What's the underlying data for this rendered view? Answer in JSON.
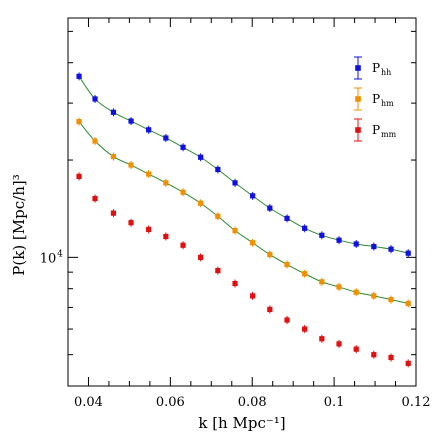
{
  "chart_data": {
    "type": "scatter",
    "xlabel": "k [h Mpc⁻¹]",
    "ylabel": "P(k) [Mpc/h]³",
    "xlim": [
      0.035,
      0.12
    ],
    "ylim": [
      4000,
      55000
    ],
    "yscale": "log",
    "grid": false,
    "legend_position": "top-right",
    "xticks": [
      {
        "value": 0.04,
        "label": "0.04"
      },
      {
        "value": 0.06,
        "label": "0.06"
      },
      {
        "value": 0.08,
        "label": "0.08"
      },
      {
        "value": 0.1,
        "label": "0.1"
      },
      {
        "value": 0.12,
        "label": "0.12"
      }
    ],
    "yticks_major": [
      {
        "value": 10000,
        "label": "10",
        "exponent": "4"
      }
    ],
    "yticks_minor": [
      5000,
      6000,
      7000,
      8000,
      9000,
      20000,
      30000,
      40000,
      50000
    ],
    "x": [
      0.0377,
      0.0416,
      0.0461,
      0.0504,
      0.0547,
      0.0589,
      0.0631,
      0.0674,
      0.0716,
      0.0758,
      0.0801,
      0.0843,
      0.0885,
      0.0928,
      0.097,
      0.1012,
      0.1054,
      0.1097,
      0.1139,
      0.1181
    ],
    "series": [
      {
        "name": "P",
        "subscript": "hh",
        "color": "#1010e0",
        "fit_line": true,
        "values": [
          36300,
          30900,
          28100,
          26400,
          24800,
          23400,
          21900,
          20400,
          18700,
          17000,
          15500,
          14200,
          13200,
          12300,
          11700,
          11300,
          11000,
          10800,
          10600,
          10300
        ]
      },
      {
        "name": "P",
        "subscript": "hm",
        "color": "#f09000",
        "fit_line": true,
        "values": [
          26300,
          22900,
          20500,
          19300,
          18100,
          17000,
          15900,
          14700,
          13400,
          12100,
          11100,
          10200,
          9500,
          8900,
          8400,
          8100,
          7800,
          7600,
          7400,
          7200
        ]
      },
      {
        "name": "P",
        "subscript": "mm",
        "color": "#e01010",
        "fit_line": false,
        "values": [
          17800,
          15200,
          13700,
          12800,
          12200,
          11600,
          10900,
          10000,
          9100,
          8300,
          7600,
          6900,
          6400,
          6000,
          5600,
          5400,
          5200,
          5000,
          4900,
          4700
        ]
      }
    ]
  },
  "colors": {
    "fit_line": "#2e8b2e",
    "axis": "#000000"
  }
}
